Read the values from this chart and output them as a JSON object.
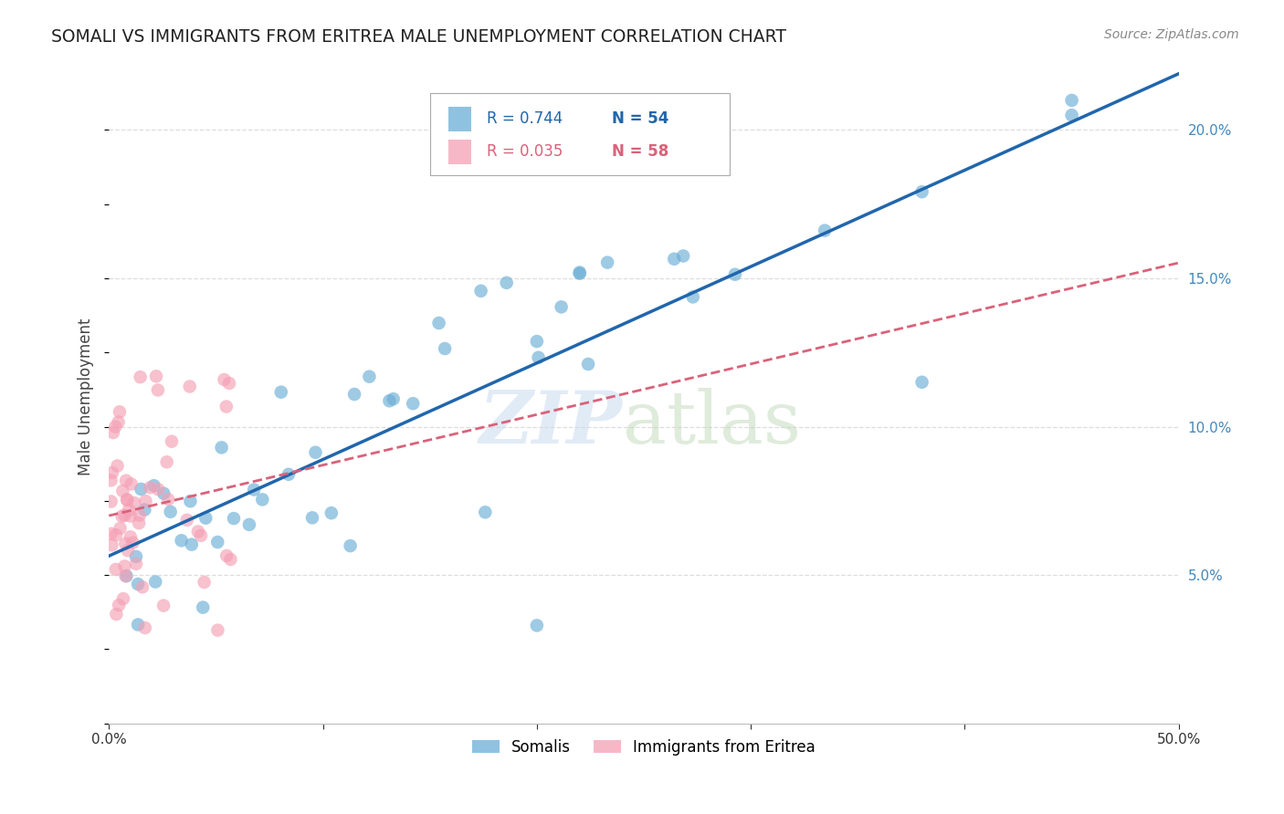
{
  "title": "SOMALI VS IMMIGRANTS FROM ERITREA MALE UNEMPLOYMENT CORRELATION CHART",
  "source": "Source: ZipAtlas.com",
  "ylabel": "Male Unemployment",
  "legend_label1": "Somalis",
  "legend_label2": "Immigrants from Eritrea",
  "legend_R1": "R = 0.744",
  "legend_N1": "N = 54",
  "legend_R2": "R = 0.035",
  "legend_N2": "N = 58",
  "somali_color": "#6aaed6",
  "eritrea_color": "#f4a0b5",
  "somali_line_color": "#2166ac",
  "eritrea_line_color": "#d9627a",
  "background_color": "#ffffff",
  "grid_color": "#dddddd",
  "xlim": [
    0.0,
    0.5
  ],
  "ylim": [
    0.0,
    0.22
  ],
  "yticks": [
    0.05,
    0.1,
    0.15,
    0.2
  ],
  "ytick_labels": [
    "5.0%",
    "10.0%",
    "15.0%",
    "20.0%"
  ],
  "xticks": [
    0.0,
    0.1,
    0.2,
    0.3,
    0.4,
    0.5
  ],
  "xtick_labels": [
    "0.0%",
    "",
    "",
    "",
    "",
    "50.0%"
  ]
}
